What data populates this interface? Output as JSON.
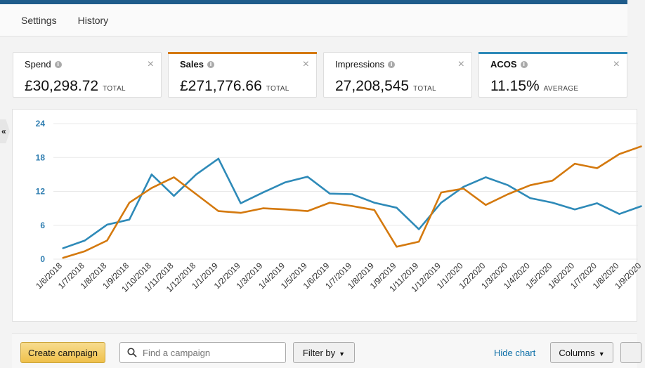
{
  "nav": {
    "items": [
      "Settings",
      "History"
    ]
  },
  "cards": [
    {
      "label": "Spend",
      "value": "£30,298.72",
      "suffix": "TOTAL",
      "active": false,
      "accent": ""
    },
    {
      "label": "Sales",
      "value": "£271,776.66",
      "suffix": "TOTAL",
      "active": true,
      "accent": "#d4790e"
    },
    {
      "label": "Impressions",
      "value": "27,208,545",
      "suffix": "TOTAL",
      "active": false,
      "accent": ""
    },
    {
      "label": "ACOS",
      "value": "11.15%",
      "suffix": "AVERAGE",
      "active": true,
      "accent": "#2e8ab8"
    }
  ],
  "icons": {
    "info": "info-icon",
    "close": "close-icon",
    "collapse": "double-chevron-left-icon",
    "search": "search-icon",
    "dropdown": "chevron-down-icon"
  },
  "collapse_glyph": "«",
  "close_glyph": "×",
  "chart_data": {
    "type": "line",
    "x": [
      "1/6/2018",
      "1/7/2018",
      "1/8/2018",
      "1/9/2018",
      "1/10/2018",
      "1/11/2018",
      "1/12/2018",
      "1/1/2019",
      "1/2/2019",
      "1/3/2019",
      "1/4/2019",
      "1/5/2019",
      "1/6/2019",
      "1/7/2019",
      "1/8/2019",
      "1/9/2019",
      "1/11/2019",
      "1/12/2019",
      "1/1/2020",
      "1/2/2020",
      "1/3/2020",
      "1/4/2020",
      "1/5/2020",
      "1/6/2020",
      "1/7/2020",
      "1/8/2020",
      "1/9/2020"
    ],
    "yticks": [
      0,
      6,
      12,
      18,
      24
    ],
    "ylim": [
      0,
      24
    ],
    "grid": true,
    "series": [
      {
        "color": "#2e8ab8",
        "values": [
          1.9,
          3.3,
          6.1,
          7.0,
          15.0,
          11.2,
          15.0,
          17.8,
          9.9,
          11.8,
          13.6,
          14.6,
          11.6,
          11.5,
          10.0,
          9.1,
          5.3,
          10.0,
          12.8,
          14.5,
          13.1,
          10.8,
          10.0,
          8.8,
          9.9,
          8.0,
          9.4
        ]
      },
      {
        "color": "#d4790e",
        "values": [
          0.2,
          1.4,
          3.3,
          10.0,
          12.6,
          14.5,
          11.5,
          8.5,
          8.2,
          9.0,
          8.8,
          8.5,
          10.0,
          9.4,
          8.7,
          2.2,
          3.1,
          11.8,
          12.5,
          9.6,
          11.5,
          13.1,
          13.9,
          16.9,
          16.1,
          18.6,
          20.0
        ]
      }
    ]
  },
  "toolbar": {
    "create_label": "Create campaign",
    "search_placeholder": "Find a campaign",
    "filter_label": "Filter by",
    "hide_chart_label": "Hide chart",
    "columns_label": "Columns",
    "caret": "▼"
  }
}
